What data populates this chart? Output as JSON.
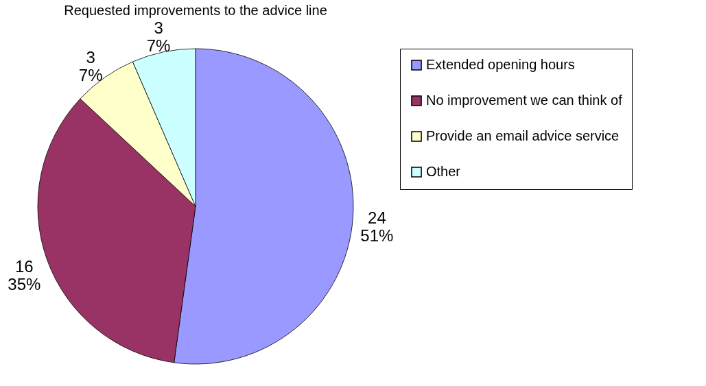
{
  "chart_data": {
    "type": "pie",
    "title": "Requested improvements to the advice line",
    "categories": [
      "Extended opening hours",
      "No improvement we can think of",
      "Provide an email advice service",
      "Other"
    ],
    "values": [
      24,
      16,
      3,
      3
    ],
    "colors": [
      "#9999ff",
      "#993366",
      "#ffffcc",
      "#ccffff"
    ],
    "value_labels": [
      "24\n51%",
      "16\n35%",
      "3\n7%",
      "3\n7%"
    ],
    "legend": "right"
  }
}
